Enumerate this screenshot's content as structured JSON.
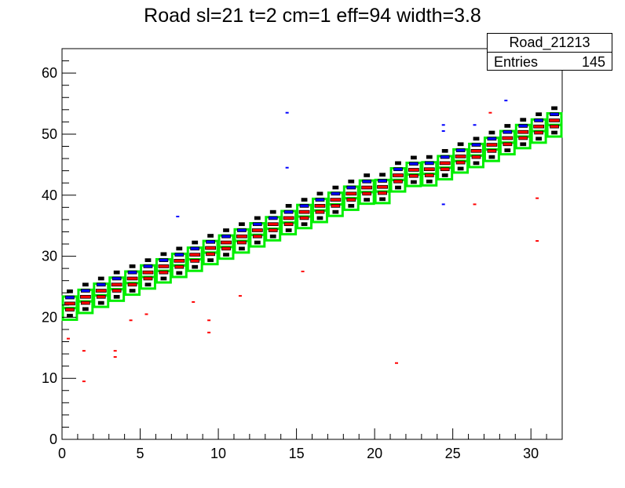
{
  "title": "Road sl=21 t=2 cm=1 eff=94 width=3.8",
  "stats": {
    "name": "Road_21213",
    "entries_label": "Entries",
    "entries_value": "145"
  },
  "colors": {
    "road": "#00ee00",
    "hits_high": "#ff0000",
    "hits_mid": "#0000ff",
    "hits_low": "#000000"
  },
  "chart_data": {
    "type": "heatmap",
    "title": "Road sl=21 t=2 cm=1 eff=94 width=3.8",
    "xlabel": "",
    "ylabel": "",
    "xlim": [
      0,
      32
    ],
    "ylim": [
      0,
      64
    ],
    "x_ticks": [
      0,
      5,
      10,
      15,
      20,
      25,
      30
    ],
    "y_ticks": [
      0,
      10,
      20,
      30,
      40,
      50,
      60
    ],
    "legend": "top-right",
    "road_columns": [
      0,
      1,
      2,
      3,
      4,
      5,
      6,
      7,
      8,
      9,
      10,
      11,
      12,
      13,
      14,
      15,
      16,
      17,
      18,
      19,
      20,
      21,
      22,
      23,
      24,
      25,
      26,
      27,
      28,
      29,
      30,
      31
    ],
    "road_center_y": [
      21.5,
      22.6,
      23.6,
      24.6,
      25.6,
      26.6,
      27.6,
      28.5,
      29.5,
      30.6,
      31.5,
      32.5,
      33.5,
      34.5,
      35.5,
      36.5,
      37.5,
      38.5,
      39.5,
      40.5,
      40.6,
      42.5,
      43.4,
      43.5,
      44.5,
      45.6,
      46.5,
      47.5,
      48.6,
      49.6,
      50.5,
      51.5
    ],
    "road_half_width": 1.9,
    "outliers": [
      {
        "x": 0.4,
        "y": 16.5,
        "c": "high"
      },
      {
        "x": 1.4,
        "y": 9.5,
        "c": "high"
      },
      {
        "x": 1.4,
        "y": 14.5,
        "c": "high"
      },
      {
        "x": 3.4,
        "y": 13.5,
        "c": "high"
      },
      {
        "x": 3.4,
        "y": 14.5,
        "c": "high"
      },
      {
        "x": 4.4,
        "y": 19.5,
        "c": "high"
      },
      {
        "x": 5.4,
        "y": 20.5,
        "c": "high"
      },
      {
        "x": 7.4,
        "y": 36.5,
        "c": "mid"
      },
      {
        "x": 8.4,
        "y": 22.5,
        "c": "high"
      },
      {
        "x": 9.4,
        "y": 17.5,
        "c": "high"
      },
      {
        "x": 9.4,
        "y": 19.5,
        "c": "high"
      },
      {
        "x": 11.4,
        "y": 23.5,
        "c": "high"
      },
      {
        "x": 14.4,
        "y": 44.5,
        "c": "mid"
      },
      {
        "x": 14.4,
        "y": 53.5,
        "c": "mid"
      },
      {
        "x": 15.4,
        "y": 27.5,
        "c": "high"
      },
      {
        "x": 21.4,
        "y": 12.5,
        "c": "high"
      },
      {
        "x": 24.4,
        "y": 38.5,
        "c": "mid"
      },
      {
        "x": 24.4,
        "y": 50.5,
        "c": "mid"
      },
      {
        "x": 24.4,
        "y": 51.5,
        "c": "mid"
      },
      {
        "x": 26.4,
        "y": 38.5,
        "c": "high"
      },
      {
        "x": 26.4,
        "y": 51.5,
        "c": "mid"
      },
      {
        "x": 27.4,
        "y": 53.5,
        "c": "high"
      },
      {
        "x": 28.4,
        "y": 55.5,
        "c": "mid"
      },
      {
        "x": 30.4,
        "y": 32.5,
        "c": "high"
      },
      {
        "x": 30.4,
        "y": 39.5,
        "c": "high"
      }
    ]
  }
}
